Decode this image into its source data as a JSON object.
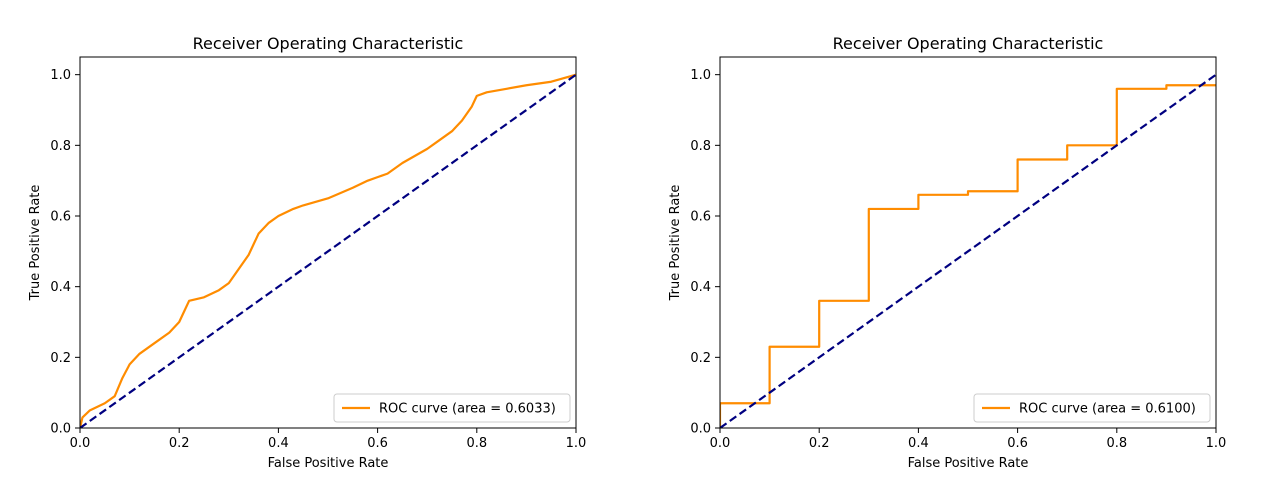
{
  "colors": {
    "roc": "#ff8c00",
    "chance": "#000080",
    "axes": "#000000",
    "legend_border": "#cccccc"
  },
  "chart_data": [
    {
      "type": "line",
      "title": "Receiver Operating Characteristic",
      "xlabel": "False Positive Rate",
      "ylabel": "True Positive Rate",
      "xlim": [
        0.0,
        1.0
      ],
      "ylim": [
        0.0,
        1.05
      ],
      "xticks": [
        "0.0",
        "0.2",
        "0.4",
        "0.6",
        "0.8",
        "1.0"
      ],
      "yticks": [
        "0.0",
        "0.2",
        "0.4",
        "0.6",
        "0.8",
        "1.0"
      ],
      "grid": false,
      "legend_position": "lower-right",
      "series": [
        {
          "name": "ROC curve (area = 0.6033)",
          "style": "solid",
          "x": [
            0.0,
            0.005,
            0.02,
            0.05,
            0.07,
            0.085,
            0.1,
            0.12,
            0.15,
            0.18,
            0.2,
            0.21,
            0.22,
            0.25,
            0.28,
            0.3,
            0.32,
            0.34,
            0.36,
            0.38,
            0.4,
            0.43,
            0.45,
            0.5,
            0.55,
            0.58,
            0.6,
            0.62,
            0.65,
            0.7,
            0.72,
            0.75,
            0.77,
            0.79,
            0.8,
            0.82,
            0.86,
            0.9,
            0.95,
            1.0
          ],
          "y": [
            0.0,
            0.03,
            0.05,
            0.07,
            0.09,
            0.14,
            0.18,
            0.21,
            0.24,
            0.27,
            0.3,
            0.33,
            0.36,
            0.37,
            0.39,
            0.41,
            0.45,
            0.49,
            0.55,
            0.58,
            0.6,
            0.62,
            0.63,
            0.65,
            0.68,
            0.7,
            0.71,
            0.72,
            0.75,
            0.79,
            0.81,
            0.84,
            0.87,
            0.91,
            0.94,
            0.95,
            0.96,
            0.97,
            0.98,
            1.0
          ]
        },
        {
          "name": "",
          "style": "dashed",
          "x": [
            0.0,
            1.0
          ],
          "y": [
            0.0,
            1.0
          ]
        }
      ]
    },
    {
      "type": "line",
      "title": "Receiver Operating Characteristic",
      "xlabel": "False Positive Rate",
      "ylabel": "True Positive Rate",
      "xlim": [
        0.0,
        1.0
      ],
      "ylim": [
        0.0,
        1.05
      ],
      "xticks": [
        "0.0",
        "0.2",
        "0.4",
        "0.6",
        "0.8",
        "1.0"
      ],
      "yticks": [
        "0.0",
        "0.2",
        "0.4",
        "0.6",
        "0.8",
        "1.0"
      ],
      "grid": false,
      "legend_position": "lower-right",
      "series": [
        {
          "name": "ROC curve (area = 0.6100)",
          "style": "solid",
          "x": [
            0.0,
            0.0,
            0.1,
            0.1,
            0.2,
            0.2,
            0.3,
            0.3,
            0.4,
            0.4,
            0.5,
            0.5,
            0.6,
            0.6,
            0.7,
            0.7,
            0.8,
            0.8,
            0.9,
            0.9,
            1.0
          ],
          "y": [
            0.0,
            0.07,
            0.07,
            0.23,
            0.23,
            0.36,
            0.36,
            0.62,
            0.62,
            0.66,
            0.66,
            0.67,
            0.67,
            0.76,
            0.76,
            0.8,
            0.8,
            0.96,
            0.96,
            0.97,
            0.97
          ]
        },
        {
          "name": "",
          "style": "dashed",
          "x": [
            0.0,
            1.0
          ],
          "y": [
            0.0,
            1.0
          ]
        }
      ]
    }
  ]
}
